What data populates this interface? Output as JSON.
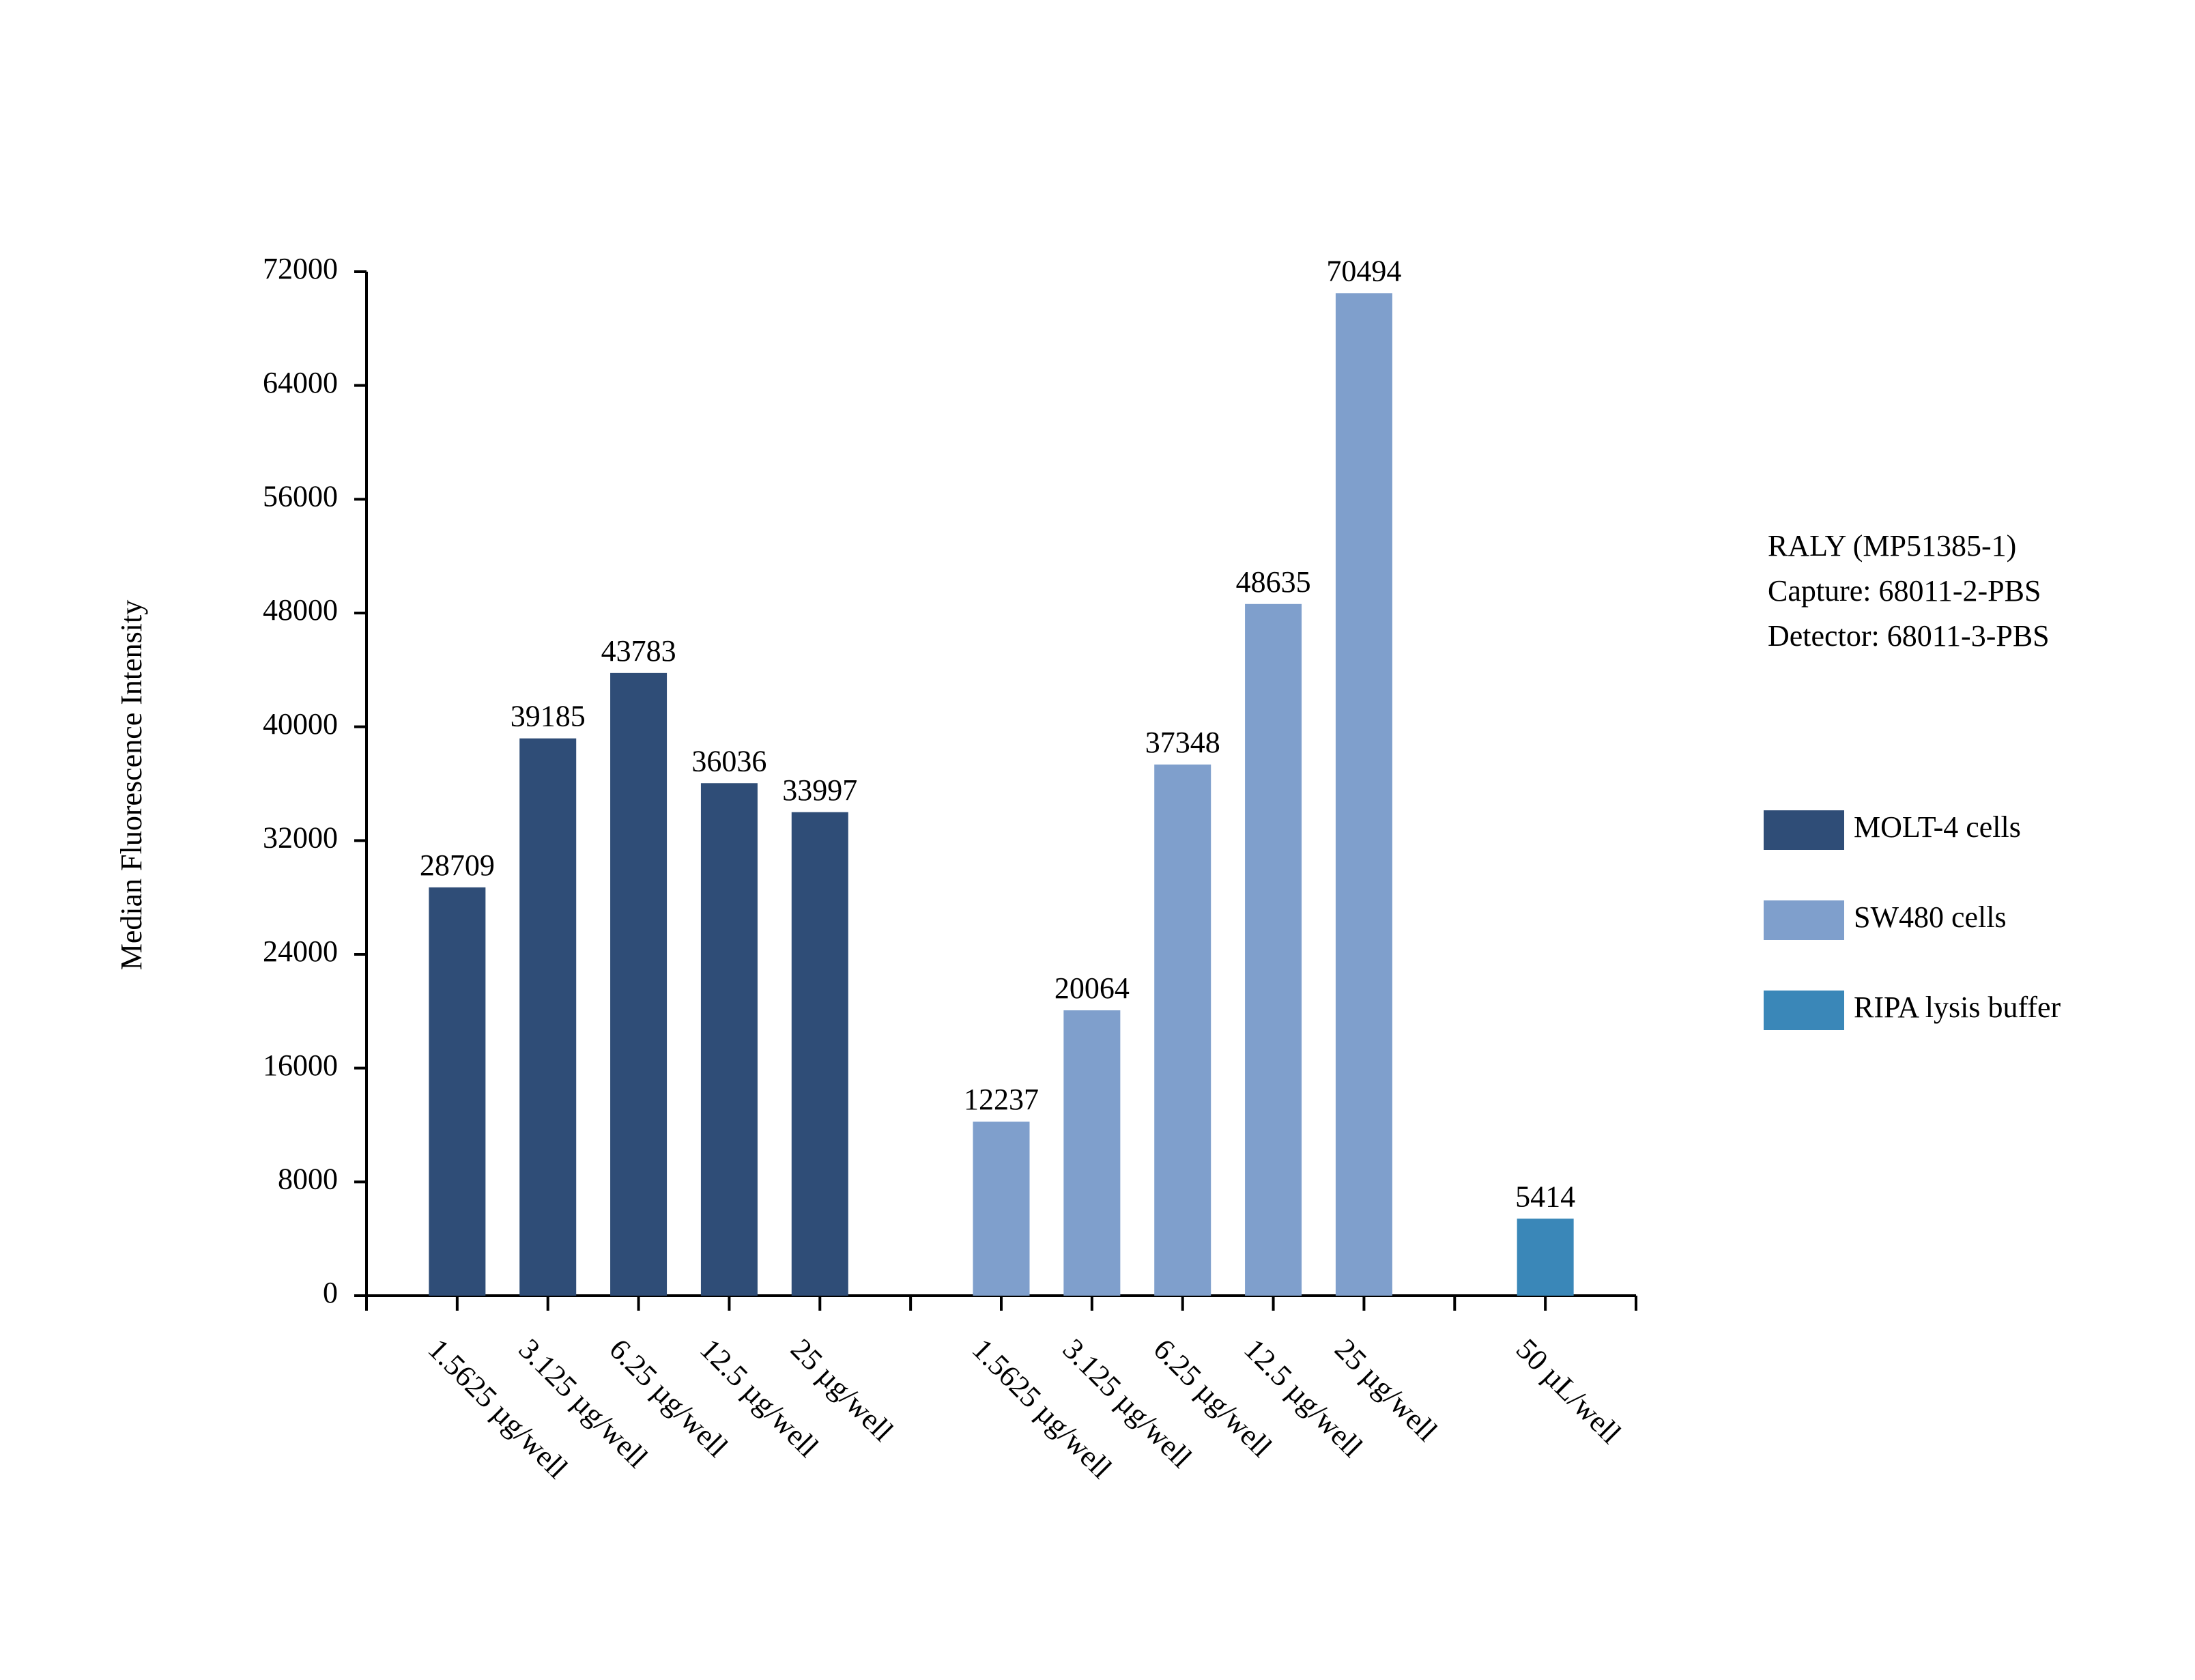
{
  "chart_data": {
    "type": "bar",
    "y_label": "Median Fluorescence Intensity",
    "annotation": [
      "RALY (MP51385-1)",
      "Capture: 68011-2-PBS",
      "Detector: 68011-3-PBS"
    ],
    "categories": [
      "1.5625 µg/well",
      "3.125 µg/well",
      "6.25 µg/well",
      "12.5 µg/well",
      "25 µg/well",
      null,
      "1.5625 µg/well",
      "3.125 µg/well",
      "6.25 µg/well",
      "12.5 µg/well",
      "25 µg/well",
      null,
      "50 µL/well"
    ],
    "series": [
      {
        "name": "MOLT-4 cells",
        "color": "#2f4d77",
        "values": [
          28709,
          39185,
          43783,
          36036,
          33997,
          null,
          null,
          null,
          null,
          null,
          null,
          null,
          null
        ]
      },
      {
        "name": "SW480 cells",
        "color": "#7f9fcc",
        "values": [
          null,
          null,
          null,
          null,
          null,
          null,
          12237,
          20064,
          37348,
          48635,
          70494,
          null,
          null
        ]
      },
      {
        "name": "RIPA lysis buffer",
        "color": "#3a87b8",
        "values": [
          null,
          null,
          null,
          null,
          null,
          null,
          null,
          null,
          null,
          null,
          null,
          null,
          5414
        ]
      }
    ],
    "ylim": [
      0,
      72000
    ],
    "yticks": [
      0,
      8000,
      16000,
      24000,
      32000,
      40000,
      48000,
      56000,
      64000,
      72000
    ],
    "legend": "right"
  }
}
